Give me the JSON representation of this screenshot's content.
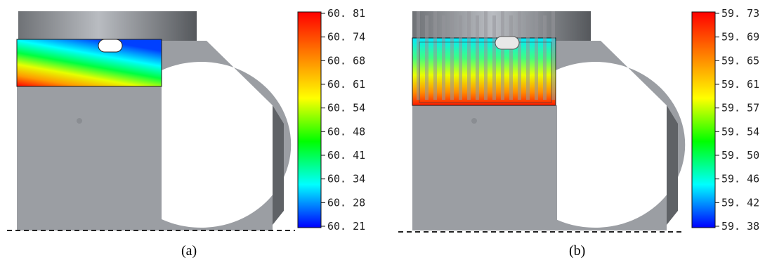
{
  "panels": [
    {
      "id": "a",
      "caption": "(a)",
      "colorbar": {
        "ticks": [
          "60. 81",
          "60. 74",
          "60. 68",
          "60. 61",
          "60. 54",
          "60. 48",
          "60. 41",
          "60. 34",
          "60. 28",
          "60. 21"
        ]
      },
      "has_fins": false
    },
    {
      "id": "b",
      "caption": "(b)",
      "colorbar": {
        "ticks": [
          "59. 73",
          "59. 69",
          "59. 65",
          "59. 61",
          "59. 57",
          "59. 54",
          "59. 50",
          "59. 46",
          "59. 42",
          "59. 38"
        ]
      },
      "has_fins": true
    }
  ],
  "colors": {
    "body_gray": "#9b9ea3",
    "dark_gray": "#5f6266",
    "colormap": [
      "#ff0000",
      "#ff8000",
      "#ffff00",
      "#00ff00",
      "#00ffff",
      "#0000ff"
    ]
  }
}
